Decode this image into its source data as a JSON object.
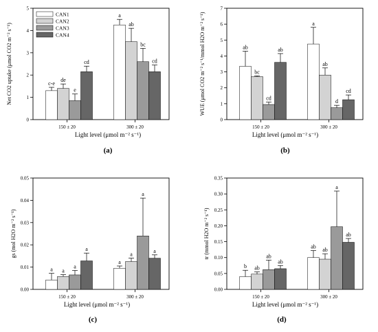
{
  "legend": [
    "CAN1",
    "CAN2",
    "CAN3",
    "CAN4"
  ],
  "colors": {
    "CAN1": "#ffffff",
    "CAN2": "#d3d3d3",
    "CAN3": "#9a9a9a",
    "CAN4": "#666666"
  },
  "chart_data": [
    {
      "type": "bar",
      "panel_label": "(a)",
      "ylabel": "Net CO2 uptake (μmol CO2 m⁻² s⁻¹)",
      "xlabel": "Light level (μmol m⁻² s⁻¹)",
      "categories": [
        "150 ± 20",
        "300 ± 20"
      ],
      "ylim": [
        0,
        5
      ],
      "yticks": [
        "0",
        "1",
        "2",
        "3",
        "4",
        "5"
      ],
      "legend_position": "top-left",
      "series": [
        {
          "name": "CAN1",
          "values": [
            1.3,
            4.25
          ],
          "errors": [
            0.15,
            0.25
          ],
          "letters": [
            "c-e",
            "a"
          ]
        },
        {
          "name": "CAN2",
          "values": [
            1.4,
            3.5
          ],
          "errors": [
            0.2,
            0.6
          ],
          "letters": [
            "de",
            "ab"
          ]
        },
        {
          "name": "CAN3",
          "values": [
            0.85,
            2.6
          ],
          "errors": [
            0.3,
            0.6
          ],
          "letters": [
            "e",
            "bc"
          ]
        },
        {
          "name": "CAN4",
          "values": [
            2.15,
            2.15
          ],
          "errors": [
            0.25,
            0.3
          ],
          "letters": [
            "cd",
            "cd"
          ]
        }
      ]
    },
    {
      "type": "bar",
      "panel_label": "(b)",
      "ylabel": "WUE (μmol CO2 m⁻² s⁻¹/mmol H2O m⁻² s⁻¹)",
      "xlabel": "Light level (μmol m⁻² s⁻¹)",
      "categories": [
        "150 ± 20",
        "300 ± 20"
      ],
      "ylim": [
        0,
        7
      ],
      "yticks": [
        "0",
        "1",
        "2",
        "3",
        "4",
        "5",
        "6",
        "7"
      ],
      "series": [
        {
          "name": "CAN1",
          "values": [
            3.35,
            4.75
          ],
          "errors": [
            0.95,
            1.05
          ],
          "letters": [
            "ab",
            "a"
          ]
        },
        {
          "name": "CAN2",
          "values": [
            2.7,
            2.8
          ],
          "errors": [
            0.05,
            0.45
          ],
          "letters": [
            "bc",
            "ab"
          ]
        },
        {
          "name": "CAN3",
          "values": [
            0.95,
            0.75
          ],
          "errors": [
            0.15,
            0.15
          ],
          "letters": [
            "cd",
            "d"
          ]
        },
        {
          "name": "CAN4",
          "values": [
            3.6,
            1.25
          ],
          "errors": [
            0.55,
            0.3
          ],
          "letters": [
            "ab",
            "cd"
          ]
        }
      ]
    },
    {
      "type": "bar",
      "panel_label": "(c)",
      "ylabel": "gs (mol H2O m⁻² s⁻¹)",
      "xlabel": "Light level (μmol m⁻² s⁻¹)",
      "categories": [
        "150 ± 20",
        "300 ± 20"
      ],
      "ylim": [
        0,
        0.05
      ],
      "yticks": [
        "0.00",
        "0.01",
        "0.02",
        "0.03",
        "0.04",
        "0.05"
      ],
      "series": [
        {
          "name": "CAN1",
          "values": [
            0.0042,
            0.0095
          ],
          "errors": [
            0.003,
            0.001
          ],
          "letters": [
            "a",
            "a"
          ]
        },
        {
          "name": "CAN2",
          "values": [
            0.0058,
            0.0125
          ],
          "errors": [
            0.0008,
            0.0015
          ],
          "letters": [
            "a",
            "a"
          ]
        },
        {
          "name": "CAN3",
          "values": [
            0.0065,
            0.024
          ],
          "errors": [
            0.002,
            0.017
          ],
          "letters": [
            "a",
            "a"
          ]
        },
        {
          "name": "CAN4",
          "values": [
            0.0128,
            0.014
          ],
          "errors": [
            0.0035,
            0.0015
          ],
          "letters": [
            "a",
            "a"
          ]
        }
      ]
    },
    {
      "type": "bar",
      "panel_label": "(d)",
      "ylabel": "tr (mmol H2O m⁻² s⁻¹)",
      "xlabel": "Light level (μmol m⁻² s⁻¹)",
      "categories": [
        "150 ± 20",
        "300 ± 20"
      ],
      "ylim": [
        0,
        0.35
      ],
      "yticks": [
        "0.00",
        "0.05",
        "0.10",
        "0.15",
        "0.20",
        "0.25",
        "0.30",
        "0.35"
      ],
      "series": [
        {
          "name": "CAN1",
          "values": [
            0.04,
            0.1
          ],
          "errors": [
            0.02,
            0.022
          ],
          "letters": [
            "b",
            "ab"
          ]
        },
        {
          "name": "CAN2",
          "values": [
            0.048,
            0.095
          ],
          "errors": [
            0.007,
            0.017
          ],
          "letters": [
            "ab",
            "ab"
          ]
        },
        {
          "name": "CAN3",
          "values": [
            0.062,
            0.197
          ],
          "errors": [
            0.03,
            0.112
          ],
          "letters": [
            "ab",
            "a"
          ]
        },
        {
          "name": "CAN4",
          "values": [
            0.065,
            0.148
          ],
          "errors": [
            0.01,
            0.012
          ],
          "letters": [
            "ab",
            "ab"
          ]
        }
      ]
    }
  ]
}
